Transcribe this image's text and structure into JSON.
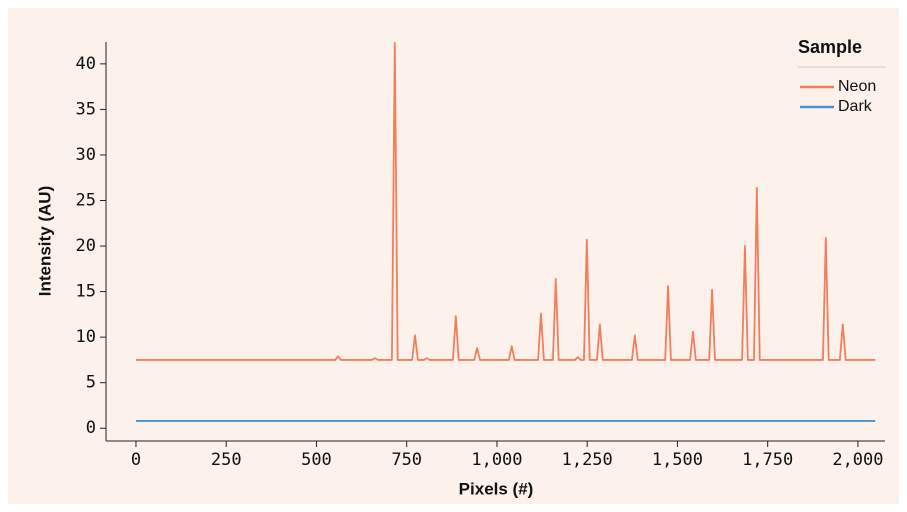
{
  "chart_data": {
    "type": "line",
    "x_label": "Pixels (#)",
    "y_label": "Intensity (AU)",
    "legend_title": "Sample",
    "legend": "top-right",
    "x": [
      0,
      552,
      560,
      568,
      654,
      662,
      670,
      709,
      717,
      725,
      765,
      773,
      781,
      798,
      806,
      814,
      878,
      886,
      894,
      937,
      945,
      953,
      1033,
      1041,
      1049,
      1114,
      1122,
      1130,
      1155,
      1163,
      1171,
      1216,
      1224,
      1232,
      1241,
      1249,
      1257,
      1277,
      1285,
      1293,
      1374,
      1382,
      1390,
      1466,
      1474,
      1482,
      1535,
      1543,
      1551,
      1588,
      1596,
      1604,
      1679,
      1687,
      1695,
      1712,
      1720,
      1728,
      1903,
      1911,
      1919,
      1950,
      1958,
      1966,
      2048
    ],
    "series": [
      {
        "name": "Neon",
        "color": "#f07f5b",
        "values": [
          7.5,
          7.5,
          7.9,
          7.5,
          7.5,
          7.7,
          7.5,
          7.5,
          42.3,
          7.5,
          7.5,
          10.2,
          7.5,
          7.5,
          7.7,
          7.5,
          7.5,
          12.3,
          7.5,
          7.5,
          8.8,
          7.5,
          7.5,
          9.0,
          7.5,
          7.5,
          12.6,
          7.5,
          7.5,
          16.4,
          7.5,
          7.5,
          7.8,
          7.5,
          7.5,
          20.7,
          7.5,
          7.5,
          11.4,
          7.5,
          7.5,
          10.2,
          7.5,
          7.5,
          15.6,
          7.5,
          7.5,
          10.6,
          7.5,
          7.5,
          15.2,
          7.5,
          7.5,
          20.0,
          7.5,
          7.5,
          26.4,
          7.5,
          7.5,
          20.9,
          7.5,
          7.5,
          11.4,
          7.5,
          7.5
        ]
      },
      {
        "name": "Dark",
        "color": "#4a8fd6",
        "values": [
          0.8,
          0.8,
          0.8,
          0.8,
          0.8,
          0.8,
          0.8,
          0.8,
          0.8,
          0.8,
          0.8,
          0.8,
          0.8,
          0.8,
          0.8,
          0.8,
          0.8,
          0.8,
          0.8,
          0.8,
          0.8,
          0.8,
          0.8,
          0.8,
          0.8,
          0.8,
          0.8,
          0.8,
          0.8,
          0.8,
          0.8,
          0.8,
          0.8,
          0.8,
          0.8,
          0.8,
          0.8,
          0.8,
          0.8,
          0.8,
          0.8,
          0.8,
          0.8,
          0.8,
          0.8,
          0.8,
          0.8,
          0.8,
          0.8,
          0.8,
          0.8,
          0.8,
          0.8,
          0.8,
          0.8,
          0.8,
          0.8,
          0.8,
          0.8,
          0.8,
          0.8,
          0.8,
          0.8,
          0.8,
          0.8
        ]
      }
    ],
    "xlim": [
      -83,
      2075
    ],
    "ylim": [
      -1.4,
      42.4
    ],
    "xticks": [
      0,
      250,
      500,
      750,
      {
        "value": 1000,
        "label": "1,000"
      },
      {
        "value": 1250,
        "label": "1,250"
      },
      {
        "value": 1500,
        "label": "1,500"
      },
      {
        "value": 1750,
        "label": "1,750"
      },
      {
        "value": 2000,
        "label": "2,000"
      }
    ],
    "yticks": [
      0,
      5,
      10,
      15,
      20,
      25,
      30,
      35,
      40
    ],
    "grid": false
  }
}
